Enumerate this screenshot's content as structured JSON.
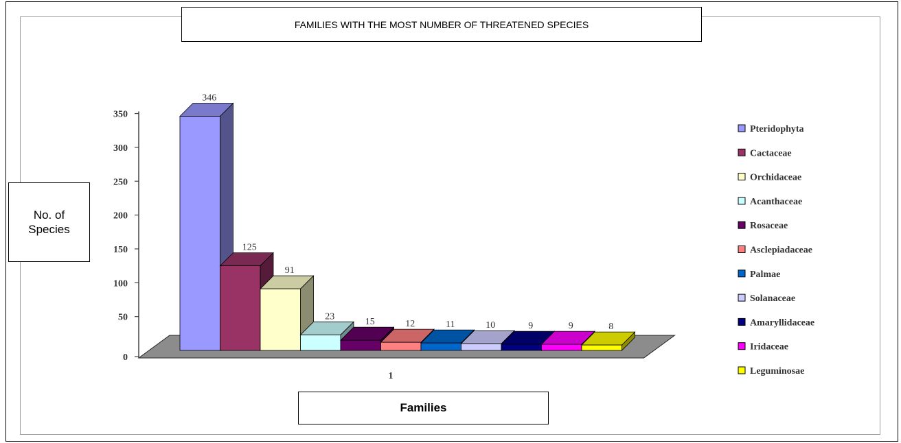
{
  "chart_data": {
    "type": "bar",
    "title": "FAMILIES WITH THE MOST NUMBER OF THREATENED SPECIES",
    "xlabel": "Families",
    "ylabel": "No. of\nSpecies",
    "categories": [
      "1"
    ],
    "ylim": [
      0,
      350
    ],
    "yticks": [
      0,
      50,
      100,
      150,
      200,
      250,
      300,
      350
    ],
    "legend_position": "right",
    "series": [
      {
        "name": "Pteridophyta",
        "values": [
          346
        ],
        "color": "#9999ff"
      },
      {
        "name": "Cactaceae",
        "values": [
          125
        ],
        "color": "#993366"
      },
      {
        "name": "Orchidaceae",
        "values": [
          91
        ],
        "color": "#ffffcc"
      },
      {
        "name": "Acanthaceae",
        "values": [
          23
        ],
        "color": "#ccffff"
      },
      {
        "name": "Rosaceae",
        "values": [
          15
        ],
        "color": "#660066"
      },
      {
        "name": "Asclepiadaceae",
        "values": [
          12
        ],
        "color": "#ff8080"
      },
      {
        "name": "Palmae",
        "values": [
          11
        ],
        "color": "#0066cc"
      },
      {
        "name": "Solanaceae",
        "values": [
          10
        ],
        "color": "#ccccff"
      },
      {
        "name": "Amaryllidaceae",
        "values": [
          9
        ],
        "color": "#000080"
      },
      {
        "name": "Iridaceae",
        "values": [
          9
        ],
        "color": "#ff00ff"
      },
      {
        "name": "Leguminosae",
        "values": [
          8
        ],
        "color": "#ffff00"
      }
    ]
  }
}
